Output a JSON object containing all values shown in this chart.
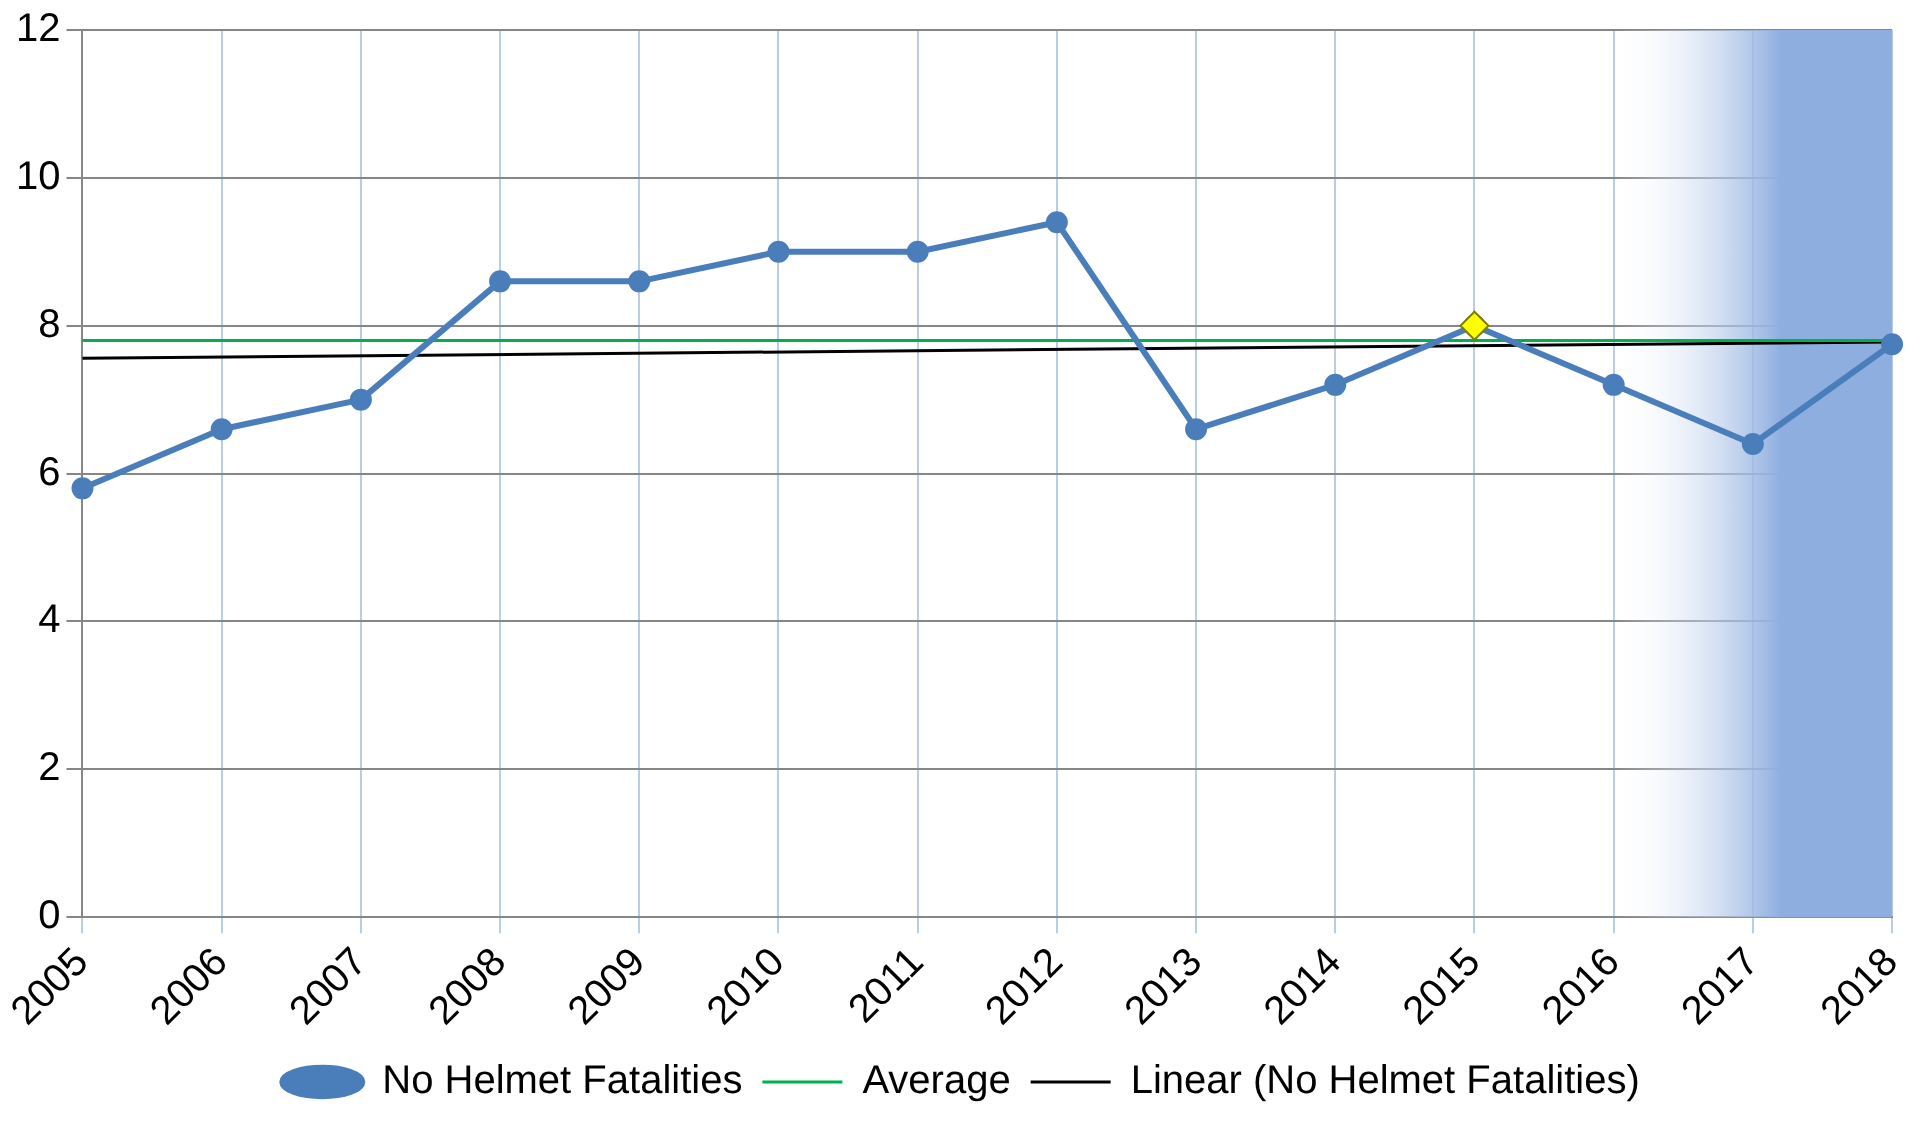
{
  "chart_data": {
    "type": "line",
    "categories": [
      "2005",
      "2006",
      "2007",
      "2008",
      "2009",
      "2010",
      "2011",
      "2012",
      "2013",
      "2014",
      "2015",
      "2016",
      "2017",
      "2018"
    ],
    "series": [
      {
        "name": "No Helmet Fatalities",
        "color": "#4a7ebb",
        "marker": "circle",
        "values": [
          5.8,
          6.6,
          7.0,
          8.6,
          8.6,
          9.0,
          9.0,
          9.4,
          6.6,
          7.2,
          8.0,
          7.2,
          6.4,
          7.75
        ]
      },
      {
        "name": "Average",
        "color": "#00b050",
        "marker": "none",
        "values": [
          7.8,
          null,
          null,
          null,
          null,
          null,
          null,
          null,
          null,
          null,
          null,
          null,
          null,
          7.8
        ]
      },
      {
        "name": "Linear (No Helmet Fatalities)",
        "color": "#000000",
        "marker": "none",
        "values": [
          7.56,
          null,
          null,
          null,
          null,
          null,
          null,
          null,
          null,
          null,
          null,
          null,
          null,
          7.78
        ]
      },
      {
        "type": "scatter",
        "color": "#ffff00",
        "marker": "diamond",
        "values": [
          null,
          null,
          null,
          null,
          null,
          null,
          null,
          null,
          null,
          null,
          8.0,
          null,
          null,
          null
        ]
      }
    ],
    "bands": [
      {
        "axis": "x",
        "from": "2016",
        "to": "2018",
        "color": "#8faee0"
      }
    ],
    "ylim": [
      0,
      12
    ],
    "yticks": [
      0,
      2,
      4,
      6,
      8,
      10,
      12
    ],
    "grid": true,
    "legend": "bottom"
  }
}
